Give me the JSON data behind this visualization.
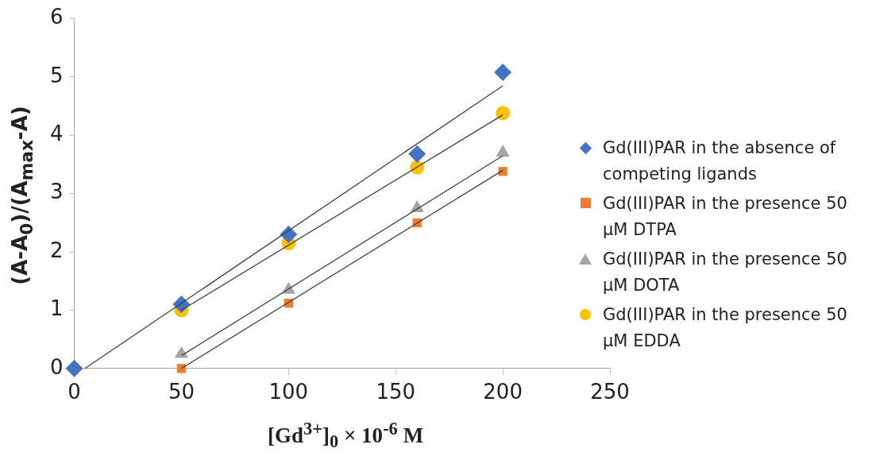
{
  "chart_data": {
    "type": "scatter",
    "xlabel": "[Gd$^{3+}$]$_{0}$ × 10$^{-6}$ M",
    "ylabel": "(A-A$_{0}$)/(A$_{max}$-A)",
    "xlim": [
      0,
      250
    ],
    "xticks": [
      0,
      50,
      100,
      150,
      200,
      250
    ],
    "ylim": [
      0,
      6
    ],
    "yticks": [
      0,
      1,
      2,
      3,
      4,
      5,
      6
    ],
    "grid": false,
    "legend": "right",
    "series": [
      {
        "name": "Gd(III)PAR in the absence of competing ligands",
        "color": "#4472c4",
        "marker": "diamond",
        "x": [
          0,
          50,
          100,
          160,
          200
        ],
        "values": [
          0,
          1.1,
          2.3,
          3.68,
          5.08
        ]
      },
      {
        "name": "Gd(III)PAR in the presence 50 µM DTPA",
        "color": "#ed7d31",
        "marker": "square",
        "x": [
          50,
          100,
          160,
          200
        ],
        "values": [
          0,
          1.12,
          2.5,
          3.38
        ]
      },
      {
        "name": "Gd(III)PAR in the presence 50 µM DOTA",
        "color": "#a5a5a5",
        "marker": "triangle",
        "x": [
          50,
          100,
          160,
          200
        ],
        "values": [
          0.25,
          1.35,
          2.75,
          3.7
        ]
      },
      {
        "name": "Gd(III)PAR in the presence 50 µM EDDA",
        "color": "#ffc000",
        "marker": "circle",
        "x": [
          50,
          100,
          160,
          200
        ],
        "values": [
          1.0,
          2.15,
          3.45,
          4.38
        ]
      },
      {
        "type": "line",
        "color": "#404040",
        "marker": "none",
        "x": [
          5,
          200
        ],
        "values": [
          0,
          4.85
        ]
      },
      {
        "type": "line",
        "color": "#404040",
        "marker": "none",
        "x": [
          50,
          200
        ],
        "values": [
          0.0,
          3.4
        ]
      },
      {
        "type": "line",
        "color": "#404040",
        "marker": "none",
        "x": [
          50,
          200
        ],
        "values": [
          0.22,
          3.65
        ]
      },
      {
        "type": "line",
        "color": "#404040",
        "marker": "none",
        "x": [
          50,
          200
        ],
        "values": [
          1.0,
          4.35
        ]
      }
    ]
  }
}
